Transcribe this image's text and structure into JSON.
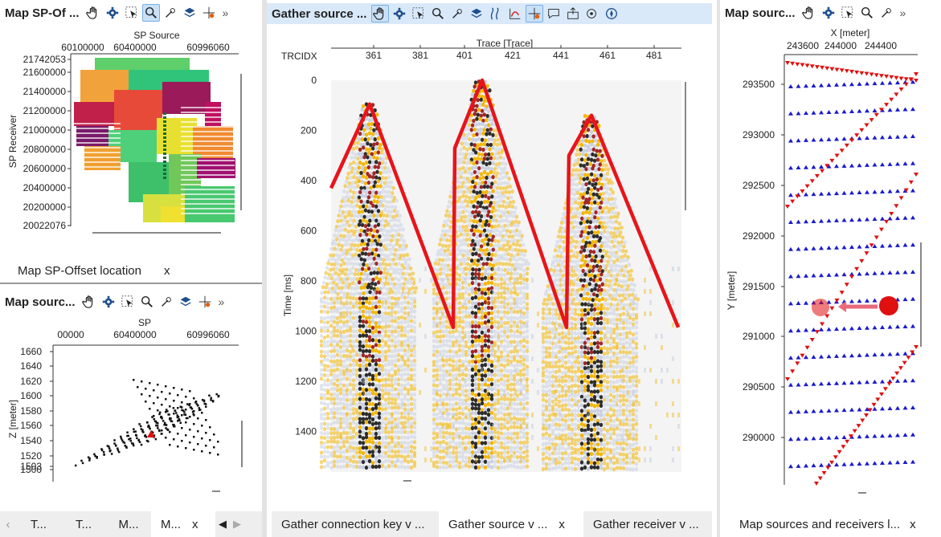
{
  "panel_sp_offset": {
    "title": "Map SP-Of ...",
    "x_axis_label": "SP Source",
    "x_ticks": [
      "60100000",
      "60400000",
      "60996060"
    ],
    "y_axis_label": "SP Receiver",
    "y_ticks": [
      "21742053",
      "21600000",
      "21400000",
      "21200000",
      "21000000",
      "20800000",
      "20600000",
      "20400000",
      "20200000",
      "20022076"
    ],
    "tab_label": "Map SP-Offset location",
    "tab_close": "x"
  },
  "panel_sources_small": {
    "title": "Map sourc...",
    "x_axis_label": "SP",
    "x_ticks": [
      "00000",
      "60400000",
      "60996060"
    ],
    "y_axis_label": "Z [meter]",
    "y_ticks": [
      "1660",
      "1640",
      "1620",
      "1600",
      "1580",
      "1560",
      "1540",
      "1520",
      "1503",
      "1500"
    ]
  },
  "bottom_left_tabs": {
    "items": [
      "T...",
      "T...",
      "M...",
      "M..."
    ],
    "close": "x",
    "prev": "◀",
    "next": "▶"
  },
  "gather_panel": {
    "title": "Gather source ...",
    "x_axis_label": "Trace [Trace]",
    "x_row_label": "TRCIDX",
    "x_ticks": [
      "361",
      "381",
      "401",
      "421",
      "441",
      "461",
      "481"
    ],
    "y_axis_label": "Time [ms]",
    "y_ticks": [
      "0",
      "200",
      "400",
      "600",
      "800",
      "1000",
      "1200",
      "1400"
    ],
    "tabs": [
      "Gather connection key v ...",
      "Gather source v ...",
      "Gather receiver v ..."
    ],
    "tab_close": "x",
    "colors": {
      "overlay": "#e8141a",
      "positive": "#222222",
      "negative": "#f2b400"
    }
  },
  "map_sources_panel": {
    "title": "Map sourc...",
    "x_axis_label": "X [meter]",
    "x_ticks": [
      "243600",
      "244000",
      "244400"
    ],
    "y_axis_label": "Y [meter]",
    "y_ticks": [
      "293500",
      "293000",
      "292500",
      "292000",
      "291500",
      "291000",
      "290500",
      "290000"
    ],
    "tab_label": "Map sources and receivers l...",
    "tab_close": "x",
    "colors": {
      "receiver": "#1a1acc",
      "source": "#e01010"
    }
  },
  "icons": [
    "hand-pan-icon",
    "gear-icon",
    "select-icon",
    "zoom-icon",
    "pick-icon",
    "layers-icon",
    "crosshair-icon",
    "wiggle-icon",
    "chart-icon",
    "comment-icon",
    "export-icon",
    "measure-icon",
    "compass-icon"
  ]
}
